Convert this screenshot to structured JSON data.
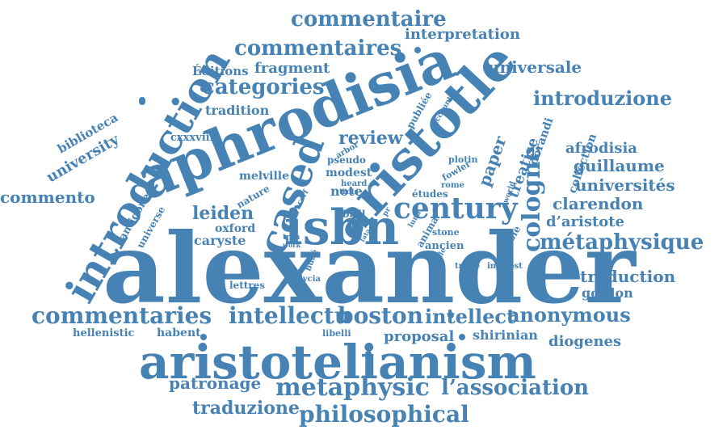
{
  "colors": {
    "word": "#4682b4",
    "background": "#ffffff"
  },
  "words": [
    {
      "text": "alexander"
    },
    {
      "text": "aphrodisia"
    },
    {
      "text": "aristotelianism"
    },
    {
      "text": "aristotle"
    },
    {
      "text": "introduction"
    },
    {
      "text": "isbn"
    },
    {
      "text": "cased"
    },
    {
      "text": "commentaires"
    },
    {
      "text": "commentaire"
    },
    {
      "text": "categories"
    },
    {
      "text": "century"
    },
    {
      "text": "cologne"
    },
    {
      "text": "métaphysique"
    },
    {
      "text": "commentaries"
    },
    {
      "text": "intellectu"
    },
    {
      "text": "boston"
    },
    {
      "text": "intellect"
    },
    {
      "text": "anonymous"
    },
    {
      "text": "metaphysic"
    },
    {
      "text": "l’association"
    },
    {
      "text": "philosophical"
    },
    {
      "text": "traduzione"
    },
    {
      "text": "patronage"
    },
    {
      "text": "introduzione"
    },
    {
      "text": "universale"
    },
    {
      "text": "interpretation"
    },
    {
      "text": "fragment"
    },
    {
      "text": "Éditions"
    },
    {
      "text": "tradition"
    },
    {
      "text": "review"
    },
    {
      "text": "university"
    },
    {
      "text": "biblioteca"
    },
    {
      "text": "commento"
    },
    {
      "text": "leiden"
    },
    {
      "text": "guillaume"
    },
    {
      "text": "afrodisia"
    },
    {
      "text": "universités"
    },
    {
      "text": "clarendon"
    },
    {
      "text": "d’aristote"
    },
    {
      "text": "traduction"
    },
    {
      "text": "gordon"
    },
    {
      "text": "diogenes"
    },
    {
      "text": "shirinian"
    },
    {
      "text": "proposal"
    },
    {
      "text": "hellenistic"
    },
    {
      "text": "habent"
    },
    {
      "text": "libelli"
    },
    {
      "text": "lycia"
    },
    {
      "text": "lettres"
    },
    {
      "text": "caryste"
    },
    {
      "text": "oxford"
    },
    {
      "text": "melville"
    },
    {
      "text": "note"
    },
    {
      "text": "modest"
    },
    {
      "text": "pseudo"
    },
    {
      "text": "cxxxviii"
    },
    {
      "text": "paper"
    },
    {
      "text": "treatise"
    },
    {
      "text": "collection"
    },
    {
      "text": "dorandi"
    },
    {
      "text": "plotin"
    },
    {
      "text": "ancien"
    },
    {
      "text": "brill"
    },
    {
      "text": "heard"
    },
    {
      "text": "arbor"
    },
    {
      "text": "trois"
    },
    {
      "text": "études"
    },
    {
      "text": "rome"
    },
    {
      "text": "fowler"
    },
    {
      "text": "stone"
    },
    {
      "text": "anima"
    },
    {
      "text": "traité"
    },
    {
      "text": "interest"
    },
    {
      "text": "double"
    },
    {
      "text": "publiée"
    },
    {
      "text": "account"
    },
    {
      "text": "world"
    },
    {
      "text": "antigone"
    },
    {
      "text": "universe"
    },
    {
      "text": "nature"
    },
    {
      "text": "tran"
    },
    {
      "text": "work"
    },
    {
      "text": "sou"
    },
    {
      "text": "text"
    },
    {
      "text": "belle"
    },
    {
      "text": "fata"
    },
    {
      "text": "luna"
    },
    {
      "text": "cerf"
    },
    {
      "text": "pr"
    },
    {
      "text": "budé"
    }
  ]
}
